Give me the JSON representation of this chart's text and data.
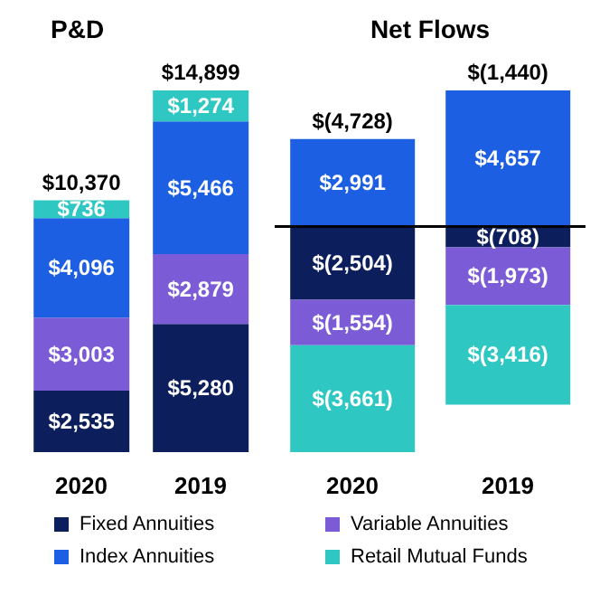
{
  "chart_data": [
    {
      "type": "bar",
      "title": "P&D",
      "categories": [
        "2020",
        "2019"
      ],
      "stacked": true,
      "tick_labels": "x",
      "legend": "bottom",
      "totals": [
        "$10,370",
        "$14,899"
      ],
      "series": [
        {
          "name": "Fixed Annuities",
          "color": "#0c1e5b",
          "values": [
            2535,
            5280
          ],
          "value_labels": [
            "$2,535",
            "$5,280"
          ]
        },
        {
          "name": "Variable Annuities",
          "color": "#7c5cd6",
          "values": [
            3003,
            2879
          ],
          "value_labels": [
            "$3,003",
            "$2,879"
          ]
        },
        {
          "name": "Index Annuities",
          "color": "#1d5fe3",
          "values": [
            4096,
            5466
          ],
          "value_labels": [
            "$4,096",
            "$5,466"
          ]
        },
        {
          "name": "Retail Mutual Funds",
          "color": "#2ec7c2",
          "values": [
            736,
            1274
          ],
          "value_labels": [
            "$736",
            "$1,274"
          ]
        }
      ]
    },
    {
      "type": "bar",
      "title": "Net Flows",
      "categories": [
        "2020",
        "2019"
      ],
      "stacked": true,
      "tick_labels": "x",
      "totals": [
        "$(4,728)",
        "$(1,440)"
      ],
      "series": [
        {
          "color": "#0c1e5b",
          "values": [
            -2504,
            -708
          ],
          "value_labels": [
            "$(2,504)",
            "$(708)"
          ]
        },
        {
          "color": "#7c5cd6",
          "values": [
            -1554,
            -1973
          ],
          "value_labels": [
            "$(1,554)",
            "$(1,973)"
          ]
        },
        {
          "color": "#1d5fe3",
          "values": [
            2991,
            4657
          ],
          "value_labels": [
            "$2,991",
            "$4,657"
          ]
        },
        {
          "color": "#2ec7c2",
          "values": [
            -3661,
            -3416
          ],
          "value_labels": [
            "$(3,661)",
            "$(3,416)"
          ]
        }
      ]
    }
  ]
}
